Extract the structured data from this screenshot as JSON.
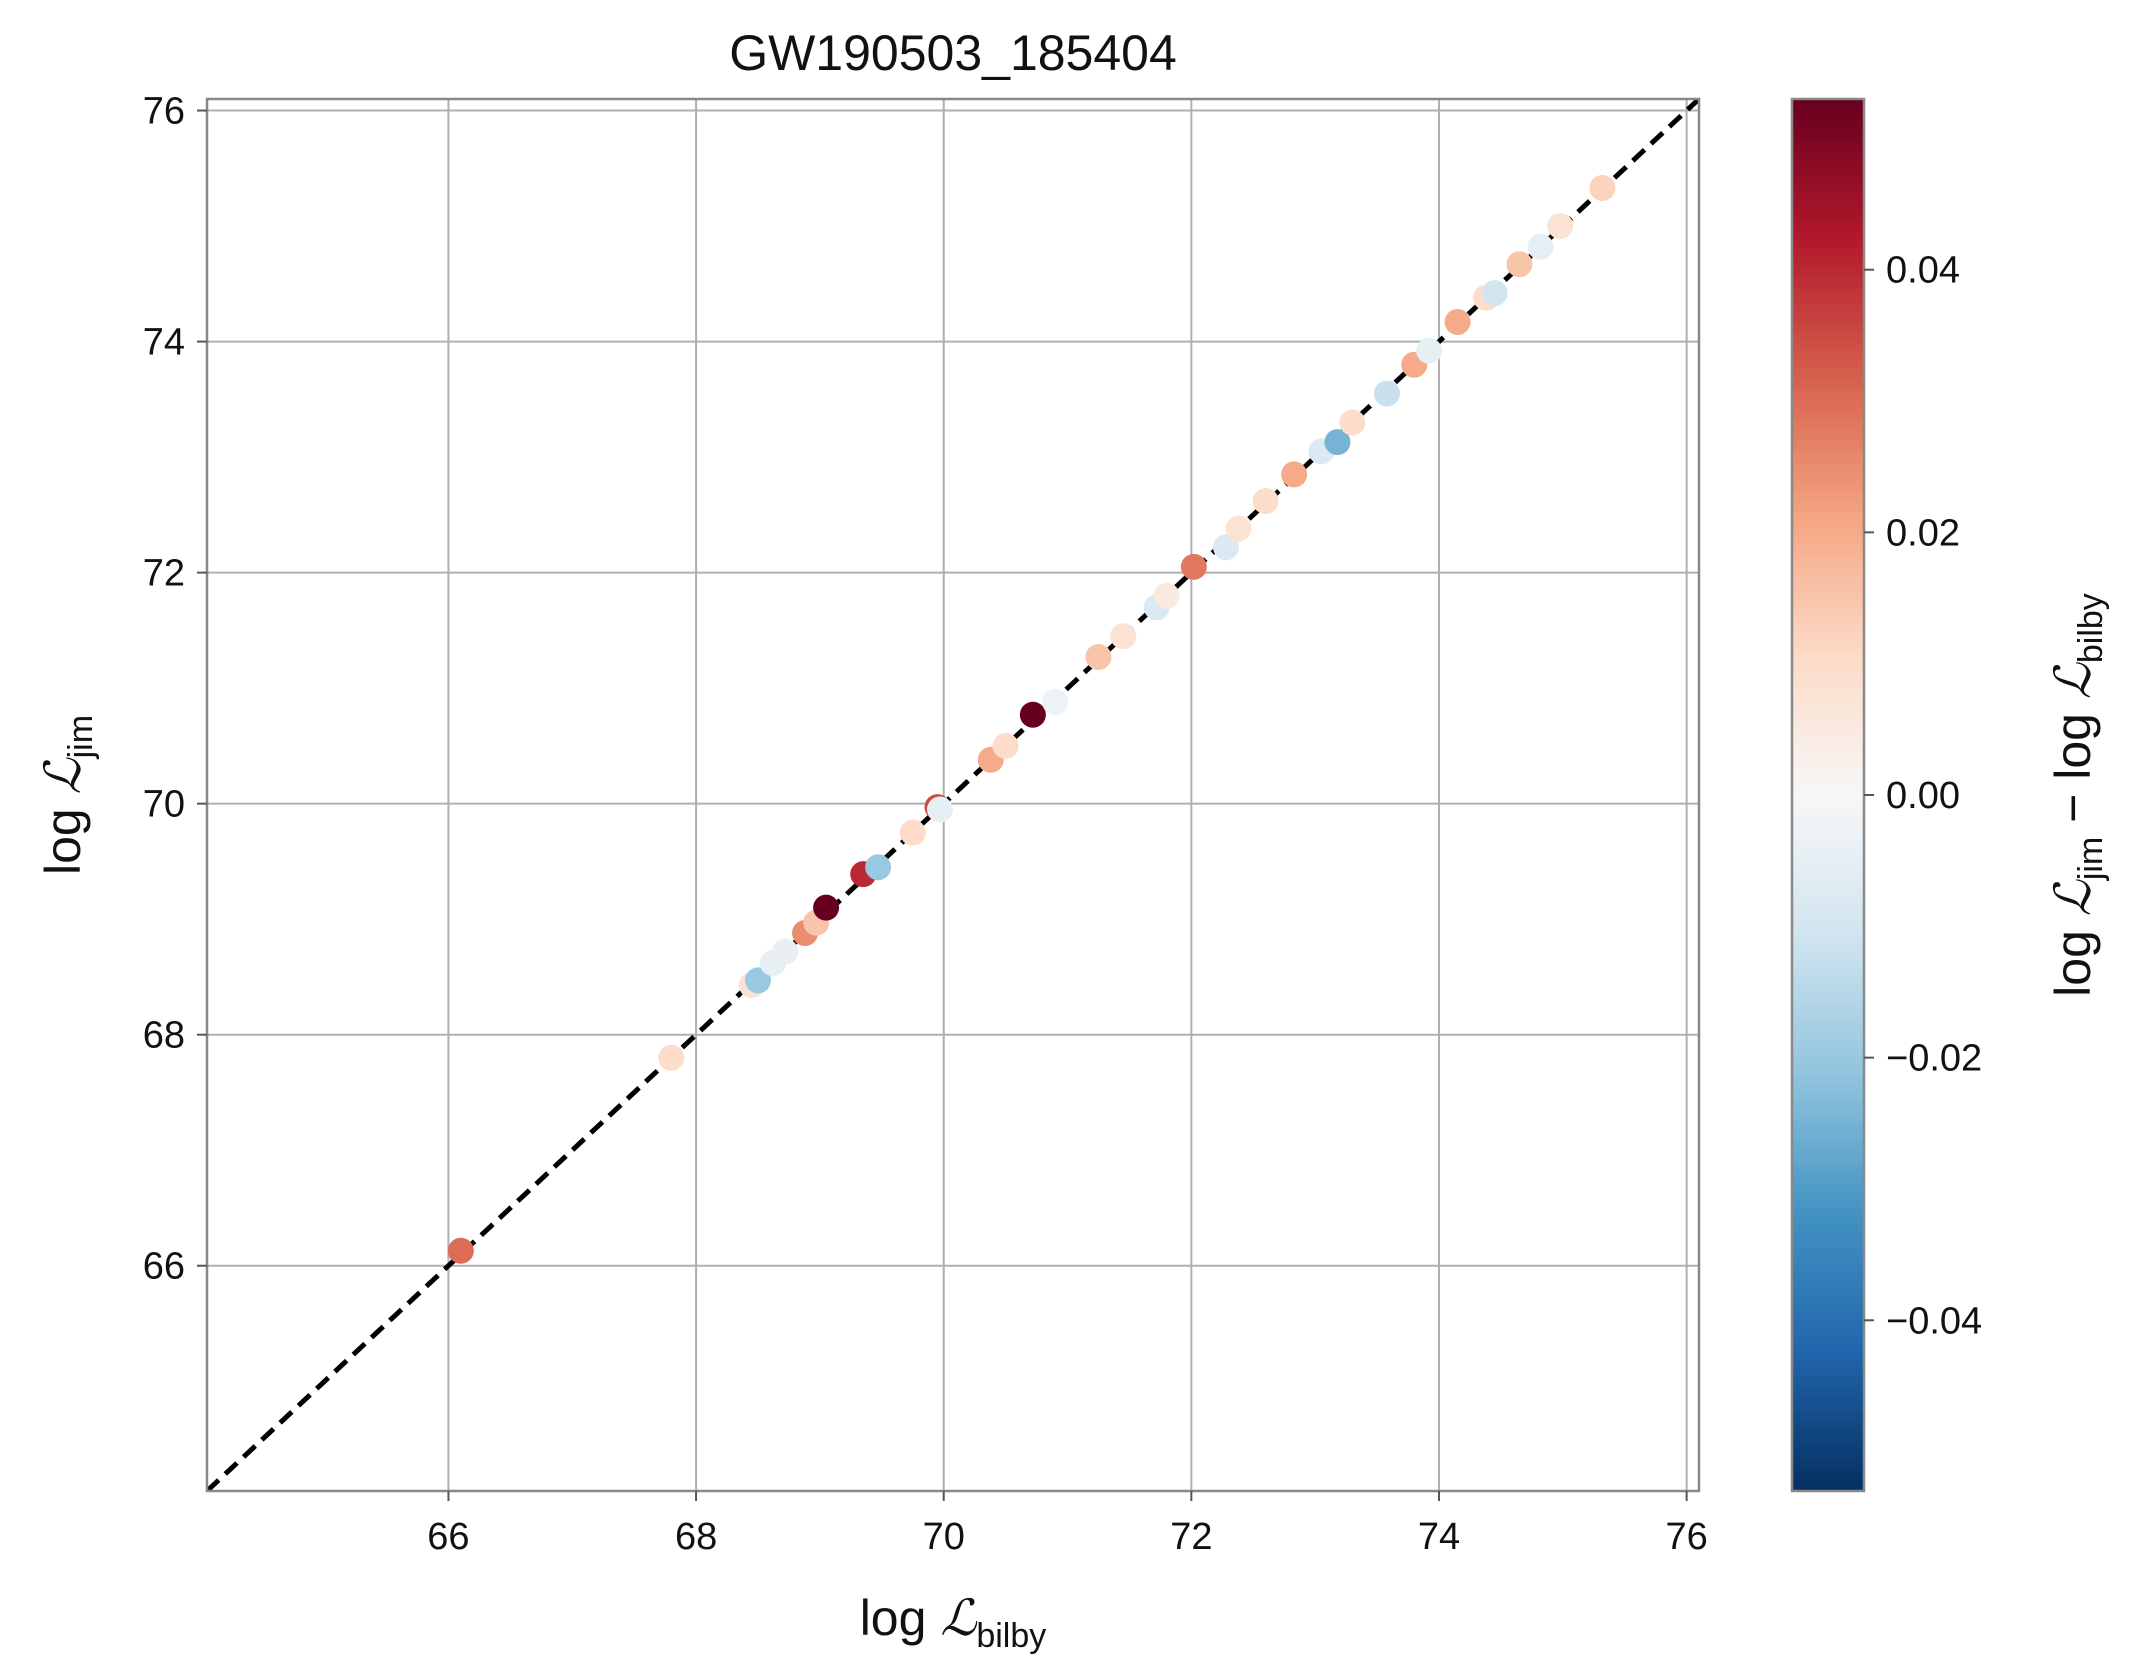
{
  "chart_data": {
    "type": "scatter",
    "title": "GW190503_185404",
    "xlabel": {
      "prefix": "log ",
      "symbol": "ℒ",
      "sub": "bilby"
    },
    "ylabel": {
      "prefix": "log ",
      "symbol": "ℒ",
      "sub": "jim"
    },
    "colorbar_label": {
      "a_prefix": "log ",
      "a_symbol": "ℒ",
      "a_sub": "jim",
      "minus": " − ",
      "b_prefix": "log ",
      "b_symbol": "ℒ",
      "b_sub": "bilby"
    },
    "xlim": [
      64.05,
      76.1
    ],
    "ylim": [
      64.05,
      76.1
    ],
    "xticks": [
      66,
      68,
      70,
      72,
      74,
      76
    ],
    "yticks": [
      66,
      68,
      70,
      72,
      74,
      76
    ],
    "xtick_labels": [
      "66",
      "68",
      "70",
      "72",
      "74",
      "76"
    ],
    "ytick_labels": [
      "66",
      "68",
      "70",
      "72",
      "74",
      "76"
    ],
    "grid": true,
    "reference_line": {
      "style": "dashed",
      "color": "#000000",
      "from": [
        64.05,
        64.05
      ],
      "to": [
        76.1,
        76.1
      ]
    },
    "colormap": "RdBu_r",
    "clim": [
      -0.053,
      0.053
    ],
    "colorbar_ticks": [
      -0.04,
      -0.02,
      0.0,
      0.02,
      0.04
    ],
    "colorbar_tick_labels": [
      "−0.04",
      "−0.02",
      "0.00",
      "0.02",
      "0.04"
    ],
    "points": [
      {
        "x": 66.1,
        "y": 66.13,
        "c": 0.03
      },
      {
        "x": 67.8,
        "y": 67.8,
        "c": 0.01
      },
      {
        "x": 68.45,
        "y": 68.43,
        "c": 0.008
      },
      {
        "x": 68.5,
        "y": 68.47,
        "c": -0.02
      },
      {
        "x": 68.62,
        "y": 68.62,
        "c": -0.005
      },
      {
        "x": 68.72,
        "y": 68.72,
        "c": -0.004
      },
      {
        "x": 68.88,
        "y": 68.88,
        "c": 0.025
      },
      {
        "x": 68.97,
        "y": 68.97,
        "c": 0.015
      },
      {
        "x": 69.05,
        "y": 69.1,
        "c": 0.053
      },
      {
        "x": 69.35,
        "y": 69.39,
        "c": 0.04
      },
      {
        "x": 69.47,
        "y": 69.45,
        "c": -0.02
      },
      {
        "x": 69.75,
        "y": 69.75,
        "c": 0.01
      },
      {
        "x": 69.95,
        "y": 69.97,
        "c": 0.035
      },
      {
        "x": 69.97,
        "y": 69.95,
        "c": -0.005
      },
      {
        "x": 70.38,
        "y": 70.38,
        "c": 0.02
      },
      {
        "x": 70.5,
        "y": 70.5,
        "c": 0.01
      },
      {
        "x": 70.72,
        "y": 70.77,
        "c": 0.053
      },
      {
        "x": 70.9,
        "y": 70.88,
        "c": -0.003
      },
      {
        "x": 71.25,
        "y": 71.27,
        "c": 0.015
      },
      {
        "x": 71.45,
        "y": 71.45,
        "c": 0.008
      },
      {
        "x": 71.72,
        "y": 71.7,
        "c": -0.008
      },
      {
        "x": 71.8,
        "y": 71.8,
        "c": 0.005
      },
      {
        "x": 72.02,
        "y": 72.05,
        "c": 0.028
      },
      {
        "x": 72.28,
        "y": 72.22,
        "c": -0.008
      },
      {
        "x": 72.38,
        "y": 72.38,
        "c": 0.008
      },
      {
        "x": 72.6,
        "y": 72.62,
        "c": 0.01
      },
      {
        "x": 72.83,
        "y": 72.85,
        "c": 0.02
      },
      {
        "x": 73.05,
        "y": 73.05,
        "c": -0.008
      },
      {
        "x": 73.18,
        "y": 73.13,
        "c": -0.025
      },
      {
        "x": 73.3,
        "y": 73.3,
        "c": 0.01
      },
      {
        "x": 73.58,
        "y": 73.55,
        "c": -0.012
      },
      {
        "x": 73.8,
        "y": 73.8,
        "c": 0.02
      },
      {
        "x": 73.92,
        "y": 73.92,
        "c": -0.005
      },
      {
        "x": 74.15,
        "y": 74.17,
        "c": 0.02
      },
      {
        "x": 74.38,
        "y": 74.38,
        "c": 0.01
      },
      {
        "x": 74.45,
        "y": 74.42,
        "c": -0.01
      },
      {
        "x": 74.65,
        "y": 74.67,
        "c": 0.015
      },
      {
        "x": 74.82,
        "y": 74.82,
        "c": -0.005
      },
      {
        "x": 74.98,
        "y": 75.0,
        "c": 0.008
      },
      {
        "x": 75.32,
        "y": 75.33,
        "c": 0.012
      }
    ]
  }
}
